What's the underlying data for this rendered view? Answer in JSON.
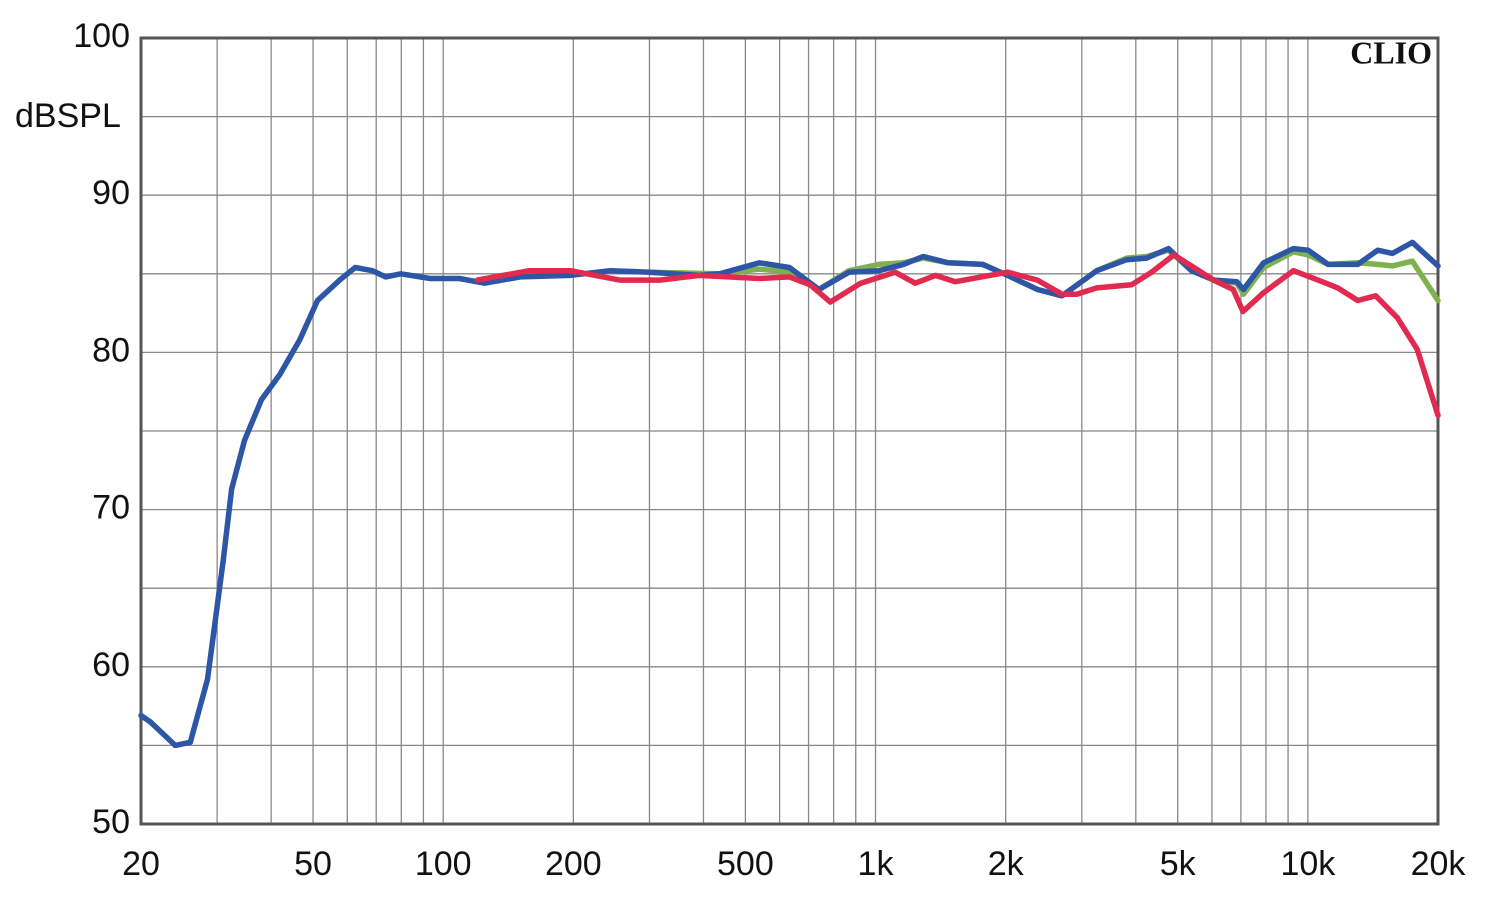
{
  "chart_data": {
    "type": "line",
    "ylabel": "dBSPL",
    "annotation": "CLIO",
    "xscale": "log",
    "grid": true,
    "xlim": [
      20,
      20000
    ],
    "ylim": [
      50,
      100
    ],
    "xticks": [
      20,
      50,
      100,
      200,
      500,
      {
        "value": 1000,
        "label": "1k"
      },
      {
        "value": 2000,
        "label": "2k"
      },
      {
        "value": 5000,
        "label": "5k"
      },
      {
        "value": 10000,
        "label": "10k"
      },
      {
        "value": 20000,
        "label": "20k"
      }
    ],
    "xminor": [
      30,
      40,
      60,
      70,
      80,
      90,
      300,
      400,
      600,
      700,
      800,
      900,
      3000,
      4000,
      6000,
      7000,
      8000,
      9000
    ],
    "yticks": [
      50,
      60,
      70,
      80,
      90,
      100
    ],
    "yminor": [
      55,
      65,
      75,
      85,
      95
    ],
    "series": [
      {
        "color": "#7fb24e",
        "x": [
          300,
          436,
          539,
          632,
          740,
          868,
          1018,
          1160,
          1289,
          1473,
          1770,
          2021,
          2370,
          2700,
          3250,
          3810,
          4238,
          4761,
          5380,
          6070,
          6850,
          7100,
          7900,
          9260,
          10020,
          11140,
          13050,
          14510,
          15700,
          17450,
          20000
        ],
        "values": [
          85.1,
          85,
          85.3,
          85.1,
          84,
          85.2,
          85.6,
          85.7,
          86,
          85.7,
          85.6,
          84.9,
          84,
          83.6,
          85.2,
          86,
          86.1,
          86.5,
          85.2,
          84.6,
          84.4,
          83.7,
          85.4,
          86.4,
          86.2,
          85.6,
          85.7,
          85.6,
          85.5,
          85.8,
          83.3
        ]
      },
      {
        "color": "#2e56a6",
        "x": [
          20,
          21,
          24,
          26,
          28.5,
          31,
          32.4,
          34.7,
          38,
          41.9,
          46.6,
          51.2,
          57.6,
          62.6,
          68.6,
          73.6,
          79.8,
          93.3,
          109,
          124.7,
          150.8,
          196.7,
          243,
          300,
          391,
          436,
          539,
          632,
          740,
          868,
          1018,
          1160,
          1289,
          1473,
          1770,
          2021,
          2370,
          2700,
          3250,
          3810,
          4238,
          4761,
          5380,
          6070,
          6850,
          7100,
          7900,
          9260,
          10020,
          11140,
          13050,
          14510,
          15700,
          17450,
          20000
        ],
        "values": [
          56.9,
          56.5,
          55,
          55.2,
          59.2,
          66.8,
          71.3,
          74.4,
          77,
          78.6,
          80.8,
          83.3,
          84.6,
          85.4,
          85.2,
          84.8,
          85,
          84.7,
          84.7,
          84.4,
          84.8,
          84.9,
          85.2,
          85.1,
          84.9,
          85,
          85.7,
          85.4,
          84,
          85.1,
          85.2,
          85.6,
          86.1,
          85.7,
          85.6,
          84.9,
          84,
          83.6,
          85.2,
          85.9,
          86,
          86.6,
          85.2,
          84.6,
          84.5,
          84,
          85.7,
          86.6,
          86.5,
          85.6,
          85.6,
          86.5,
          86.3,
          87,
          85.5
        ]
      },
      {
        "color": "#e02a50",
        "x": [
          120,
          158,
          197,
          256,
          317,
          391,
          539,
          632,
          706,
          786,
          924,
          1110,
          1235,
          1376,
          1530,
          2021,
          2370,
          2700,
          2920,
          3250,
          3910,
          4350,
          4900,
          5450,
          6050,
          6720,
          7080,
          7900,
          9260,
          10560,
          11730,
          13050,
          14350,
          16110,
          17900,
          20000
        ],
        "values": [
          84.6,
          85.2,
          85.2,
          84.6,
          84.6,
          84.9,
          84.7,
          84.8,
          84.3,
          83.2,
          84.4,
          85.1,
          84.4,
          84.9,
          84.5,
          85.1,
          84.6,
          83.7,
          83.7,
          84.1,
          84.3,
          85.1,
          86.2,
          85.4,
          84.6,
          84,
          82.6,
          83.8,
          85.2,
          84.6,
          84.1,
          83.3,
          83.6,
          82.2,
          80.2,
          76
        ]
      }
    ]
  }
}
